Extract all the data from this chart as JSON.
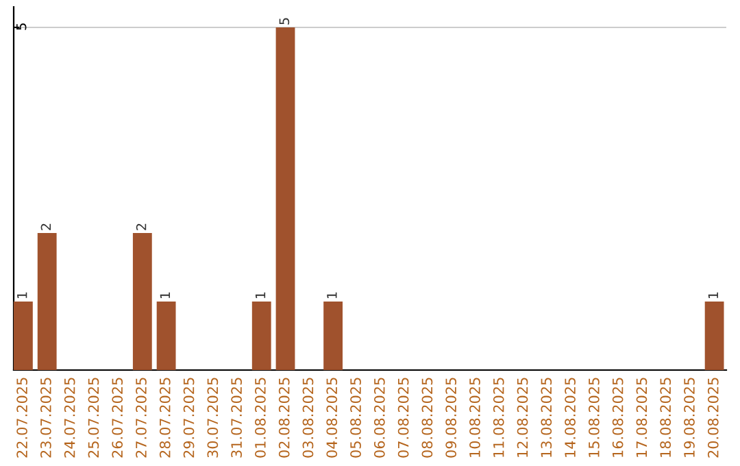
{
  "chart_data": {
    "type": "bar",
    "categories": [
      "22.07.2025",
      "23.07.2025",
      "24.07.2025",
      "25.07.2025",
      "26.07.2025",
      "27.07.2025",
      "28.07.2025",
      "29.07.2025",
      "30.07.2025",
      "31.07.2025",
      "01.08.2025",
      "02.08.2025",
      "03.08.2025",
      "04.08.2025",
      "05.08.2025",
      "06.08.2025",
      "07.08.2025",
      "08.08.2025",
      "09.08.2025",
      "10.08.2025",
      "11.08.2025",
      "12.08.2025",
      "13.08.2025",
      "14.08.2025",
      "15.08.2025",
      "16.08.2025",
      "17.08.2025",
      "18.08.2025",
      "19.08.2025",
      "20.08.2025"
    ],
    "values": [
      1,
      2,
      0,
      0,
      0,
      2,
      1,
      0,
      0,
      0,
      1,
      5,
      0,
      1,
      0,
      0,
      0,
      0,
      0,
      0,
      0,
      0,
      0,
      0,
      0,
      0,
      0,
      0,
      0,
      1
    ],
    "value_labels": [
      "1",
      "2",
      null,
      null,
      null,
      "2",
      "1",
      null,
      null,
      null,
      "1",
      "5",
      null,
      "1",
      null,
      null,
      null,
      null,
      null,
      null,
      null,
      null,
      null,
      null,
      null,
      null,
      null,
      null,
      null,
      "1"
    ],
    "color": "#a0522d",
    "ylim": [
      0,
      5.3
    ],
    "yticks": [
      5
    ],
    "grid": "y"
  }
}
